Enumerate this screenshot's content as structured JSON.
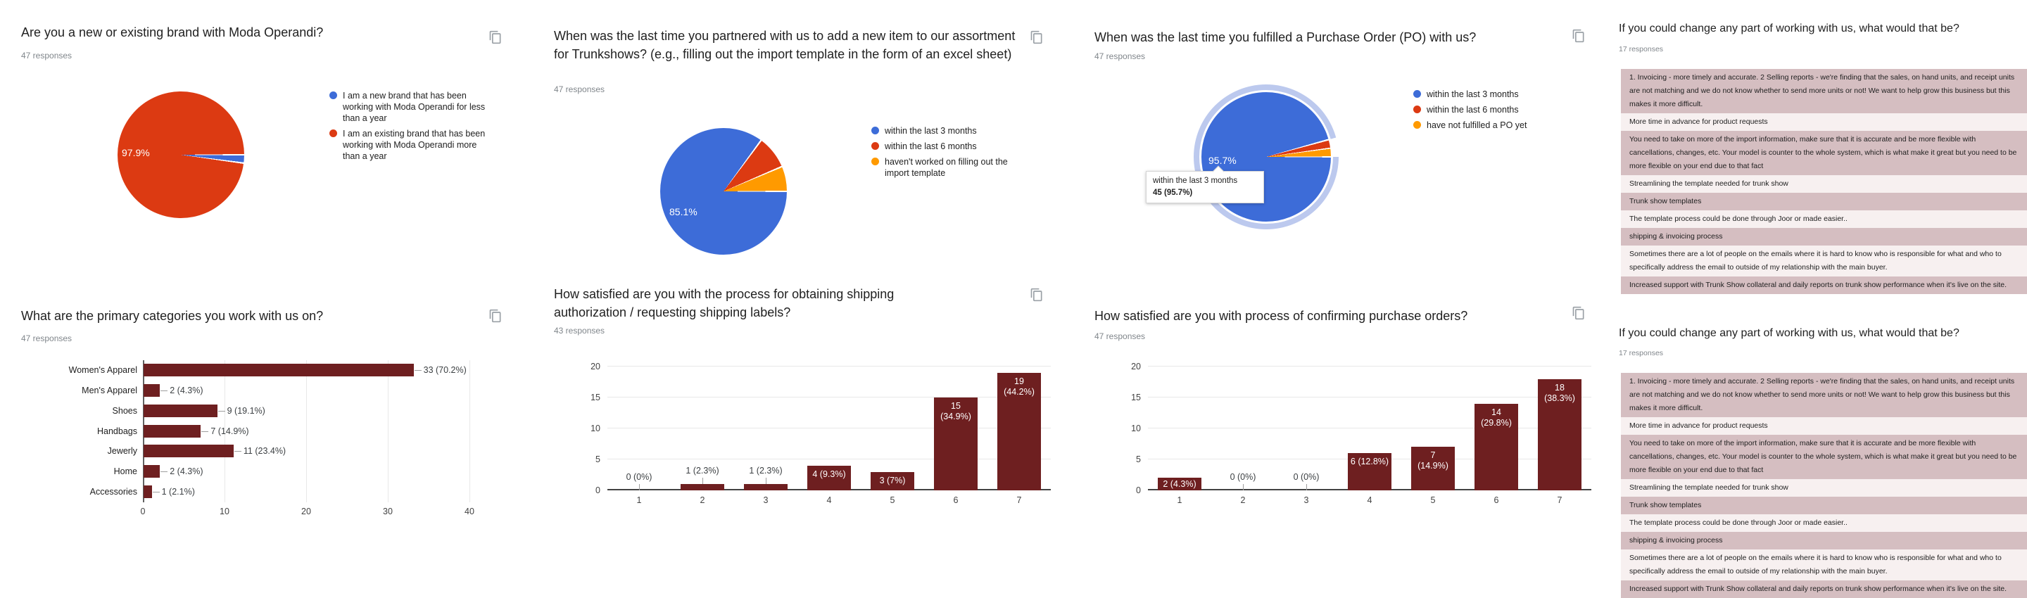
{
  "page": {
    "background": "#ffffff"
  },
  "colors": {
    "blue": "#3d6cd8",
    "red": "#dc3a12",
    "orange": "#ff9a00",
    "maroon_bar": "#6e1f20",
    "halo_blue": "#bcc9ee",
    "answer_row_pink": "#d5bec1",
    "answer_row_light": "#f7f0f0",
    "title_text": "#212121",
    "muted_text": "#80868b"
  },
  "icons": {
    "copy": "content-copy"
  },
  "col1q1": {
    "title": "Are you a new or existing brand with Moda Operandi?",
    "responses_label": "47 responses",
    "chart_data": {
      "type": "pie",
      "slices": [
        {
          "label": "I am a new brand that has been working with Moda Operandi for less than a year",
          "value_pct": 2.1,
          "color": "#3d6cd8"
        },
        {
          "label": "I am an existing brand that has been working with Moda Operandi more than a year",
          "value_pct": 97.9,
          "color": "#dc3a12"
        }
      ],
      "shown_label": "97.9%",
      "legend_position": "right"
    }
  },
  "col1q2": {
    "title": "What are the primary categories you work with us on?",
    "responses_label": "47 responses",
    "chart_data": {
      "type": "bar",
      "orientation": "horizontal",
      "categories": [
        "Women's Apparel",
        "Men's Apparel",
        "Shoes",
        "Handbags",
        "Jewerly",
        "Home",
        "Accessories"
      ],
      "values": [
        33,
        2,
        9,
        7,
        11,
        2,
        1
      ],
      "bar_labels": [
        "33 (70.2%)",
        "2 (4.3%)",
        "9 (19.1%)",
        "7 (14.9%)",
        "11 (23.4%)",
        "2 (4.3%)",
        "1 (2.1%)"
      ],
      "xticks": [
        "0",
        "10",
        "20",
        "30",
        "40"
      ],
      "xlim": [
        0,
        40
      ],
      "grid": true
    }
  },
  "col2q1": {
    "title": "When was the last time you partnered with us to add a new item to our assortment for Trunkshows? (e.g., filling out the import template in the form of an excel sheet)",
    "responses_label": "47 responses",
    "chart_data": {
      "type": "pie",
      "slices": [
        {
          "label": "within the last 3 months",
          "value_pct": 85.1,
          "color": "#3d6cd8"
        },
        {
          "label": "within the last 6 months",
          "value_pct": 8.5,
          "color": "#dc3a12"
        },
        {
          "label": "haven't worked on filling out the import template",
          "value_pct": 6.4,
          "color": "#ff9a00"
        }
      ],
      "shown_label": "85.1%",
      "legend_position": "right"
    }
  },
  "col2q2": {
    "title": "How satisfied are you with the process for obtaining shipping authorization / requesting shipping labels?",
    "responses_label": "43 responses",
    "chart_data": {
      "type": "bar",
      "orientation": "vertical",
      "categories": [
        "1",
        "2",
        "3",
        "4",
        "5",
        "6",
        "7"
      ],
      "values": [
        0,
        1,
        1,
        4,
        3,
        15,
        19
      ],
      "bar_labels": [
        "0 (0%)",
        "1 (2.3%)",
        "1 (2.3%)",
        "4 (9.3%)",
        "3 (7%)",
        "15\n(34.9%)",
        "19\n(44.2%)"
      ],
      "label_inside": [
        false,
        false,
        false,
        true,
        true,
        true,
        true
      ],
      "yticks": [
        "0",
        "5",
        "10",
        "15",
        "20"
      ],
      "ylim": [
        0,
        20
      ],
      "grid": true
    }
  },
  "col3q1": {
    "title": "When was the last time you fulfilled a Purchase Order (PO) with us?",
    "responses_label": "47 responses",
    "chart_data": {
      "type": "pie",
      "slices": [
        {
          "label": "within the last 3 months",
          "value_pct": 95.7,
          "color": "#3d6cd8",
          "highlighted": true
        },
        {
          "label": "within the last 6 months",
          "value_pct": 2.1,
          "color": "#dc3a12"
        },
        {
          "label": "have not fulfilled a PO yet",
          "value_pct": 2.1,
          "color": "#ff9a00"
        }
      ],
      "shown_label": "95.7%",
      "legend_position": "right",
      "tooltip": {
        "line1": "within the last 3 months",
        "line2": "45 (95.7%)"
      }
    }
  },
  "col3q2": {
    "title": "How satisfied are you with process of confirming purchase orders?",
    "responses_label": "47 responses",
    "chart_data": {
      "type": "bar",
      "orientation": "vertical",
      "categories": [
        "1",
        "2",
        "3",
        "4",
        "5",
        "6",
        "7"
      ],
      "values": [
        2,
        0,
        0,
        6,
        7,
        14,
        18
      ],
      "bar_labels": [
        "2 (4.3%)",
        "0 (0%)",
        "0 (0%)",
        "6 (12.8%)",
        "7\n(14.9%)",
        "14\n(29.8%)",
        "18\n(38.3%)"
      ],
      "label_inside": [
        true,
        false,
        false,
        true,
        true,
        true,
        true
      ],
      "yticks": [
        "0",
        "5",
        "10",
        "15",
        "20"
      ],
      "ylim": [
        0,
        20
      ],
      "grid": true
    }
  },
  "col4q1": {
    "title": "If you could change any part of working with us, what would that be?",
    "responses_label": "17 responses",
    "answers": [
      "1. Invoicing - more timely and accurate. 2 Selling reports - we're finding that the sales, on hand units, and receipt units are not matching and we do not know whether to send more units or not! We want to help grow this business but this makes it more difficult.",
      "More time in advance for product requests",
      "You need to take on more of the import information, make sure that it is accurate and be more flexible with cancellations, changes, etc. Your model is counter to the whole system, which is what make it great but you need to be more flexible on your end due to that fact",
      "Streamlining the template needed for trunk show",
      "Trunk show templates",
      "The template process could be done through Joor or made easier..",
      "shipping & invoicing process",
      "Sometimes there are a lot of people on the emails where it is hard to know who is responsible for what and who to specifically address the email to outside of my relationship with the main buyer.",
      "Increased support with Trunk Show collateral and daily reports on trunk show performance when it's live on the site."
    ]
  },
  "col4q2": {
    "title": "If you could change any part of working with us, what would that be?",
    "responses_label": "17 responses",
    "answers": [
      "1. Invoicing - more timely and accurate. 2 Selling reports - we're finding that the sales, on hand units, and receipt units are not matching and we do not know whether to send more units or not! We want to help grow this business but this makes it more difficult.",
      "More time in advance for product requests",
      "You need to take on more of the import information, make sure that it is accurate and be more flexible with cancellations, changes, etc. Your model is counter to the whole system, which is what make it great but you need to be more flexible on your end due to that fact",
      "Streamlining the template needed for trunk show",
      "Trunk show templates",
      "The template process could be done through Joor or made easier..",
      "shipping & invoicing process",
      "Sometimes there are a lot of people on the emails where it is hard to know who is responsible for what and who to specifically address the email to outside of my relationship with the main buyer.",
      "Increased support with Trunk Show collateral and daily reports on trunk show performance when it's live on the site."
    ]
  }
}
